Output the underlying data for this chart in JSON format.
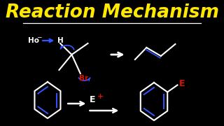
{
  "title": "Reaction Mechanism",
  "title_color": "#FFE800",
  "title_fontsize": 19,
  "bg_color": "#000000",
  "line_color_white": "#FFFFFF",
  "line_color_blue": "#3355FF",
  "line_color_red": "#DD1100",
  "ho_text": "Ho",
  "h_text": "H",
  "br_text": "Br",
  "e_plus": "E",
  "plus": "+",
  "e_label": "E"
}
